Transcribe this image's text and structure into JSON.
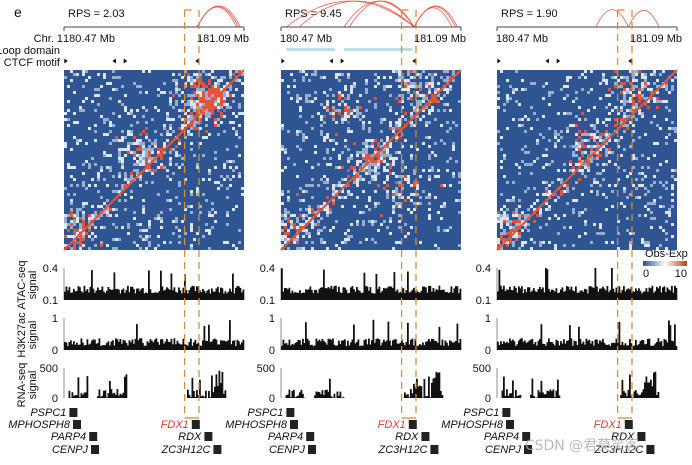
{
  "panel_letter": "e",
  "row_labels": {
    "chr": "Chr. 1",
    "loop_domain": "Loop domain",
    "ctcf_motif": "CTCF motif",
    "atac": [
      "ATAC-seq",
      "signal"
    ],
    "h3k27ac": [
      "H3K27ac",
      "signal"
    ],
    "rna": [
      "RNA-seq",
      "signal"
    ]
  },
  "colorbar": {
    "label": "Obs-Exp",
    "min": "0",
    "max": "10",
    "colors": [
      "#2b4f8f",
      "#ffffff",
      "#c0391b"
    ]
  },
  "watermark": "CSDN @君莫笑客",
  "chart_data": [
    {
      "type": "heatmap",
      "title": "RPS = 2.03",
      "region_start": "180.47 Mb",
      "region_end": "181.09 Mb",
      "rps": 2.03,
      "loop_domains": [],
      "ctcf_motifs": [
        {
          "pos": 0.01,
          "dir": "right"
        },
        {
          "pos": 0.28,
          "dir": "left"
        },
        {
          "pos": 0.34,
          "dir": "right"
        },
        {
          "pos": 0.74,
          "dir": "left"
        }
      ],
      "loop_arcs": [
        [
          0.74,
          0.97
        ],
        [
          0.74,
          0.98
        ],
        [
          0.74,
          0.96
        ]
      ],
      "highlight": [
        0.67,
        0.75
      ],
      "hotspots": [
        [
          0.42,
          0.45
        ],
        [
          0.05,
          0.85
        ],
        [
          0.75,
          0.1
        ],
        [
          0.8,
          0.2
        ]
      ],
      "atac": {
        "ylabel": "ATAC-seq signal",
        "yticks": [
          "0.4",
          "0.1"
        ],
        "ylim": [
          0.1,
          0.4
        ]
      },
      "h3k27ac": {
        "ylabel": "H3K27ac signal",
        "yticks": [
          "1",
          "0"
        ],
        "ylim": [
          0,
          1
        ]
      },
      "rna": {
        "ylabel": "RNA-seq signal",
        "yticks": [
          "500",
          "0"
        ],
        "ylim": [
          0,
          500
        ]
      },
      "genes": [
        {
          "name": "PSPC1",
          "pos": 0.03,
          "row": 0,
          "highlight": false
        },
        {
          "name": "MPHOSPH8",
          "pos": 0.05,
          "row": 1,
          "highlight": false
        },
        {
          "name": "PARP4",
          "pos": 0.14,
          "row": 2,
          "highlight": false
        },
        {
          "name": "CENPJ",
          "pos": 0.15,
          "row": 3,
          "highlight": false
        },
        {
          "name": "FDX1",
          "pos": 0.71,
          "row": 1,
          "highlight": true
        },
        {
          "name": "RDX",
          "pos": 0.78,
          "row": 2,
          "highlight": false
        },
        {
          "name": "ZC3H12C",
          "pos": 0.83,
          "row": 3,
          "highlight": false
        }
      ]
    },
    {
      "type": "heatmap",
      "title": "RPS = 9.45",
      "region_start": "180.47 Mb",
      "region_end": "181.09 Mb",
      "rps": 9.45,
      "loop_domains": [
        [
          0.03,
          0.3
        ],
        [
          0.35,
          0.73
        ]
      ],
      "ctcf_motifs": [
        {
          "pos": 0.01,
          "dir": "right"
        },
        {
          "pos": 0.28,
          "dir": "left"
        },
        {
          "pos": 0.34,
          "dir": "right"
        },
        {
          "pos": 0.74,
          "dir": "left"
        }
      ],
      "loop_arcs": [
        [
          0.03,
          0.74
        ],
        [
          0.1,
          0.74
        ],
        [
          0.35,
          0.74
        ],
        [
          0.38,
          0.74
        ],
        [
          0.74,
          0.97
        ],
        [
          0.74,
          0.98
        ],
        [
          0.74,
          0.95
        ]
      ],
      "highlight": [
        0.67,
        0.75
      ],
      "hotspots": [
        [
          0.35,
          0.2
        ],
        [
          0.7,
          0.65
        ],
        [
          0.75,
          0.1
        ],
        [
          0.05,
          0.85
        ],
        [
          0.5,
          0.5
        ]
      ],
      "atac": {
        "ylabel": "ATAC-seq signal",
        "yticks": [
          "0.4",
          "0.1"
        ],
        "ylim": [
          0.1,
          0.4
        ]
      },
      "h3k27ac": {
        "ylabel": "H3K27ac signal",
        "yticks": [
          "1",
          "0"
        ],
        "ylim": [
          0,
          1
        ]
      },
      "rna": {
        "ylabel": "RNA-seq signal",
        "yticks": [
          "500",
          "0"
        ],
        "ylim": [
          0,
          500
        ]
      },
      "genes": [
        {
          "name": "PSPC1",
          "pos": 0.03,
          "row": 0,
          "highlight": false
        },
        {
          "name": "MPHOSPH8",
          "pos": 0.05,
          "row": 1,
          "highlight": false
        },
        {
          "name": "PARP4",
          "pos": 0.14,
          "row": 2,
          "highlight": false
        },
        {
          "name": "CENPJ",
          "pos": 0.15,
          "row": 3,
          "highlight": false
        },
        {
          "name": "FDX1",
          "pos": 0.71,
          "row": 1,
          "highlight": true
        },
        {
          "name": "RDX",
          "pos": 0.78,
          "row": 2,
          "highlight": false
        },
        {
          "name": "ZC3H12C",
          "pos": 0.83,
          "row": 3,
          "highlight": false
        }
      ]
    },
    {
      "type": "heatmap",
      "title": "RPS = 1.90",
      "region_start": "180.47 Mb",
      "region_end": "181.09 Mb",
      "rps": 1.9,
      "loop_domains": [],
      "ctcf_motifs": [
        {
          "pos": 0.01,
          "dir": "right"
        },
        {
          "pos": 0.28,
          "dir": "left"
        },
        {
          "pos": 0.34,
          "dir": "right"
        },
        {
          "pos": 0.74,
          "dir": "left"
        }
      ],
      "loop_arcs": [
        [
          0.55,
          0.73
        ],
        [
          0.73,
          0.9
        ]
      ],
      "highlight": [
        0.67,
        0.75
      ],
      "hotspots": [
        [
          0.5,
          0.4
        ],
        [
          0.75,
          0.1
        ],
        [
          0.05,
          0.85
        ]
      ],
      "atac": {
        "ylabel": "ATAC-seq signal",
        "yticks": [
          "0.4",
          "0.1"
        ],
        "ylim": [
          0.1,
          0.4
        ]
      },
      "h3k27ac": {
        "ylabel": "H3K27ac signal",
        "yticks": [
          "1",
          "0"
        ],
        "ylim": [
          0,
          1
        ]
      },
      "rna": {
        "ylabel": "RNA-seq signal",
        "yticks": [
          "500",
          "0"
        ],
        "ylim": [
          0,
          500
        ]
      },
      "genes": [
        {
          "name": "PSPC1",
          "pos": 0.03,
          "row": 0,
          "highlight": false
        },
        {
          "name": "MPHOSPH8",
          "pos": 0.05,
          "row": 1,
          "highlight": false
        },
        {
          "name": "PARP4",
          "pos": 0.14,
          "row": 2,
          "highlight": false
        },
        {
          "name": "CENPJ",
          "pos": 0.15,
          "row": 3,
          "highlight": false
        },
        {
          "name": "FDX1",
          "pos": 0.71,
          "row": 1,
          "highlight": true
        },
        {
          "name": "RDX",
          "pos": 0.78,
          "row": 2,
          "highlight": false
        },
        {
          "name": "ZC3H12C",
          "pos": 0.83,
          "row": 3,
          "highlight": false
        }
      ]
    }
  ]
}
